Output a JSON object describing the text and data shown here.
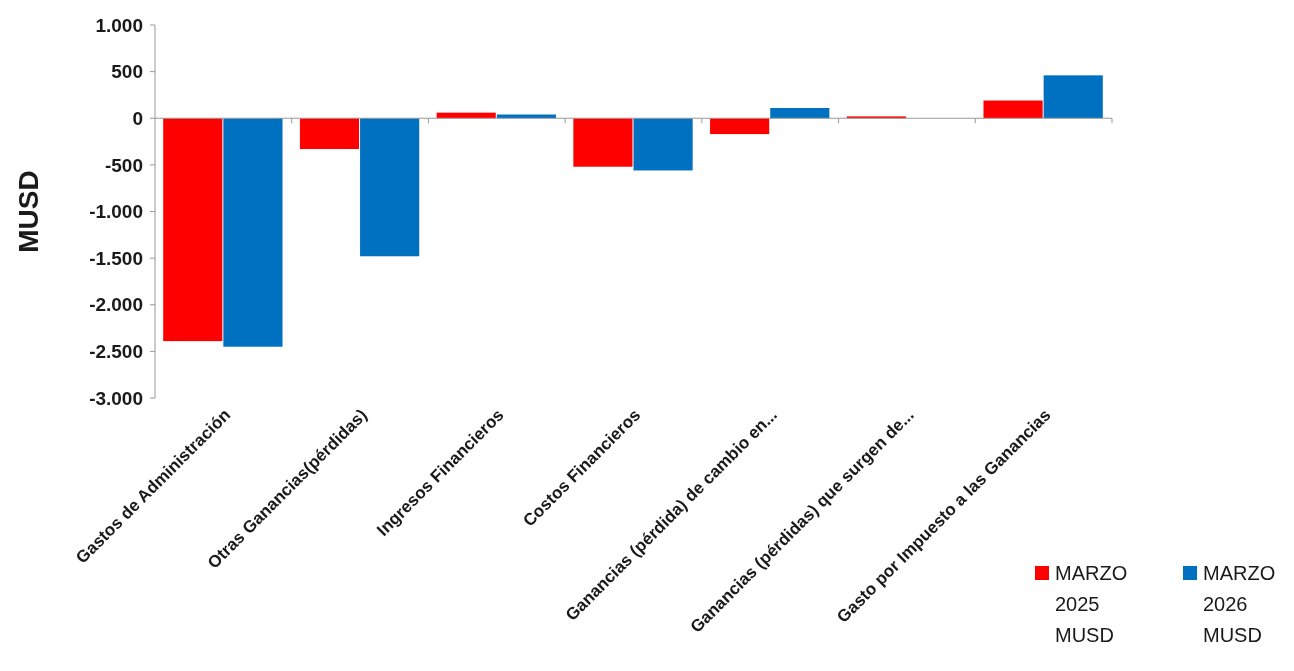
{
  "chart_data": {
    "type": "bar",
    "ylabel": "MUSD",
    "categories": [
      "Gastos de Administración",
      "Otras Ganancias(pérdidas)",
      "Ingresos Financieros",
      "Costos Financieros",
      "Ganancias (pérdida) de cambio en...",
      "Ganancias (pérdidas) que surgen de...",
      "Gasto por Impuesto a las Ganancias"
    ],
    "series": [
      {
        "name": "MARZO 2025 MUSD",
        "color": "#ff0000",
        "values": [
          -2390,
          -330,
          60,
          -520,
          -170,
          20,
          190
        ]
      },
      {
        "name": "MARZO 2026 MUSD",
        "color": "#0070c0",
        "values": [
          -2450,
          -1480,
          40,
          -560,
          110,
          0,
          460
        ]
      }
    ],
    "ylim": [
      -3000,
      1000
    ],
    "yticks": [
      {
        "value": -3000,
        "label": "-3.000"
      },
      {
        "value": -2500,
        "label": "-2.500"
      },
      {
        "value": -2000,
        "label": "-2.000"
      },
      {
        "value": -1500,
        "label": "-1.500"
      },
      {
        "value": -1000,
        "label": "-1.000"
      },
      -500,
      0,
      500,
      {
        "value": 1000,
        "label": "1.000"
      }
    ],
    "legend": "bottom right"
  }
}
